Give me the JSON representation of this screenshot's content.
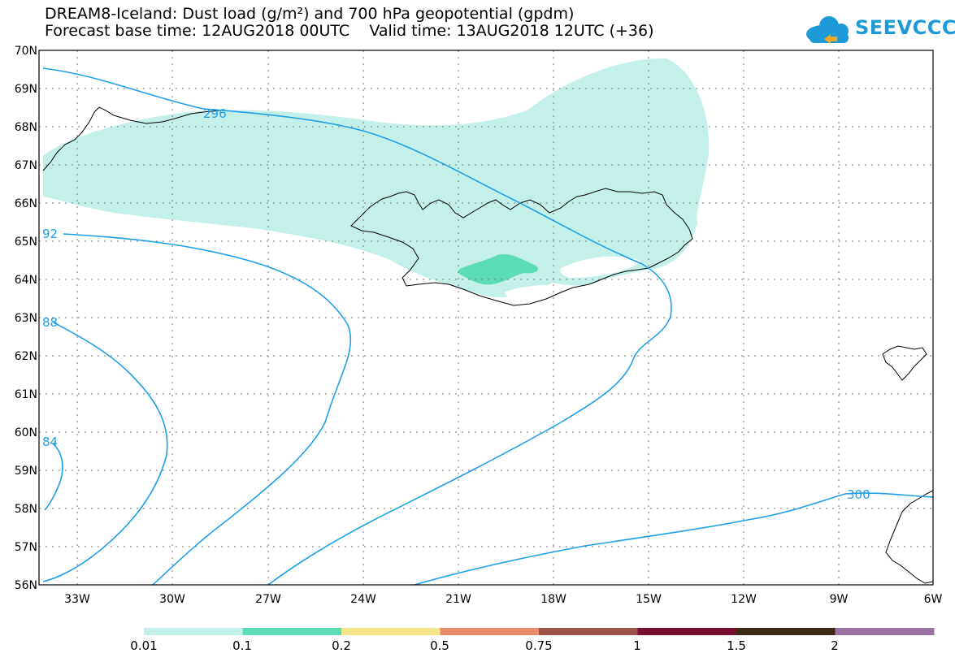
{
  "title_line1": "DREAM8-Iceland: Dust load (g/m²) and 700 hPa geopotential (gpdm)",
  "title_line2": "Forecast base time: 12AUG2018 00UTC    Valid time: 13AUG2018 12UTC (+36)",
  "logo_text": "SEEVCCC",
  "lat_ticks": [
    "70N",
    "69N",
    "68N",
    "67N",
    "66N",
    "65N",
    "64N",
    "63N",
    "62N",
    "61N",
    "60N",
    "59N",
    "58N",
    "57N",
    "56N"
  ],
  "lon_ticks": [
    "33W",
    "30W",
    "27W",
    "24W",
    "21W",
    "18W",
    "15W",
    "12W",
    "9W",
    "6W"
  ],
  "contour_labels": [
    "296",
    "92",
    "88",
    "84",
    "300"
  ],
  "colorbar": {
    "labels": [
      "0.01",
      "0.1",
      "0.2",
      "0.5",
      "0.75",
      "1",
      "1.5",
      "2"
    ],
    "colors": [
      "#c4f0ea",
      "#5bdcb4",
      "#f5e68c",
      "#e88c6c",
      "#a0524c",
      "#7a1030",
      "#3c2a14",
      "#9a72a4"
    ]
  },
  "colors": {
    "dust_low": "#c4f0ea",
    "dust_mid": "#5bdcb4",
    "contour": "#1ea0e8",
    "logo": "#1e9bd7"
  }
}
